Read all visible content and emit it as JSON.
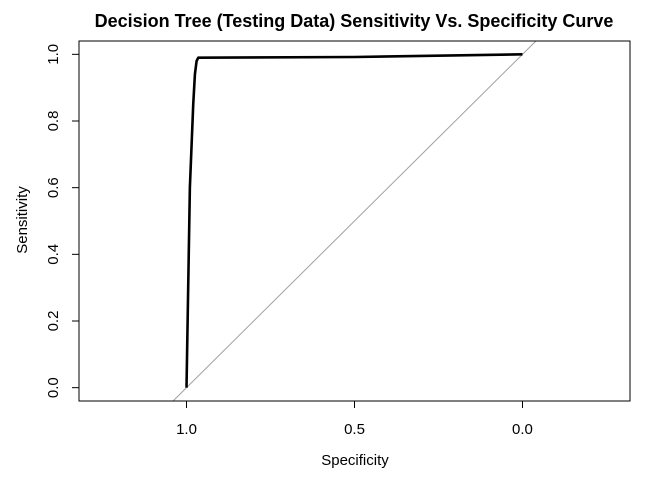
{
  "chart_data": {
    "type": "line",
    "title": "Decision Tree (Testing Data) Sensitivity Vs. Specificity Curve",
    "xlabel": "Specificity",
    "ylabel": "Sensitivity",
    "x_reversed": true,
    "xlim": [
      1.32,
      -0.32
    ],
    "ylim": [
      -0.04,
      1.04
    ],
    "x_ticks": [
      1.0,
      0.5,
      0.0
    ],
    "x_tick_labels": [
      "1.0",
      "0.5",
      "0.0"
    ],
    "y_ticks": [
      0.0,
      0.2,
      0.4,
      0.6,
      0.8,
      1.0
    ],
    "y_tick_labels": [
      "0.0",
      "0.2",
      "0.4",
      "0.6",
      "0.8",
      "1.0"
    ],
    "grid": false,
    "series": [
      {
        "color": "#000000",
        "points": [
          {
            "specificity": 1.0,
            "sensitivity": 0.0
          },
          {
            "specificity": 0.99,
            "sensitivity": 0.6
          },
          {
            "specificity": 0.98,
            "sensitivity": 0.85
          },
          {
            "specificity": 0.975,
            "sensitivity": 0.94
          },
          {
            "specificity": 0.97,
            "sensitivity": 0.98
          },
          {
            "specificity": 0.965,
            "sensitivity": 0.99
          },
          {
            "specificity": 0.5,
            "sensitivity": 0.992
          },
          {
            "specificity": 0.0,
            "sensitivity": 1.0
          }
        ]
      }
    ],
    "reference_line": {
      "color": "#a0a0a0",
      "from": [
        1.04,
        -0.04
      ],
      "to": [
        -0.04,
        1.04
      ]
    }
  }
}
